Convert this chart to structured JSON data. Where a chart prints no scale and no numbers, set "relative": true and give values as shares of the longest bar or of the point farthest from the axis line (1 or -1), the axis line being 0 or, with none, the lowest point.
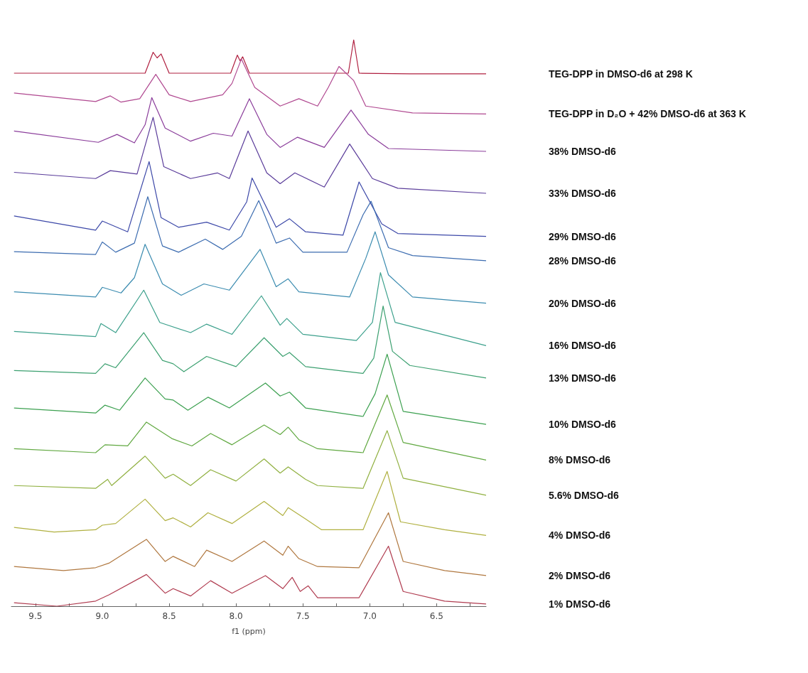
{
  "chart_data": {
    "type": "line",
    "relative": true,
    "xlabel": "f1 (ppm)",
    "xlim": [
      9.68,
      6.13
    ],
    "xticks": [
      9.5,
      {
        "value": 9.25,
        "label": null
      },
      {
        "value": 9,
        "label": "9.0"
      },
      {
        "value": 8.75,
        "label": null
      },
      8.5,
      {
        "value": 8.25,
        "label": null
      },
      {
        "value": 8,
        "label": "8.0"
      },
      {
        "value": 7.75,
        "label": null
      },
      7.5,
      {
        "value": 7.25,
        "label": null
      },
      {
        "value": 7,
        "label": "7.0"
      },
      {
        "value": 6.75,
        "label": null
      },
      6.5,
      {
        "value": 6.25,
        "label": null
      }
    ],
    "series": [
      {
        "name": "TEG-DPP in DMSO-d6 at 298 K",
        "color": "#b02040",
        "x": [
          9.66,
          9.2,
          8.8,
          8.68,
          8.62,
          8.59,
          8.56,
          8.5,
          8.2,
          8.04,
          7.99,
          7.97,
          7.95,
          7.9,
          7.5,
          7.16,
          7.12,
          7.08,
          6.7,
          6.13
        ],
        "values": [
          0.941,
          0.941,
          0.941,
          0.941,
          0.978,
          0.968,
          0.975,
          0.941,
          0.941,
          0.941,
          0.973,
          0.963,
          0.97,
          0.941,
          0.941,
          0.941,
          1,
          0.941,
          0.94,
          0.94
        ]
      },
      {
        "name": "TEG-DPP in D₂O + 42% DMSO-d6 at 363 K",
        "color": "#b04890",
        "x": [
          9.66,
          9.05,
          8.94,
          8.86,
          8.72,
          8.6,
          8.5,
          8.34,
          8.1,
          8.03,
          7.96,
          7.86,
          7.67,
          7.53,
          7.39,
          7.31,
          7.23,
          7.12,
          7.03,
          6.68,
          6.13
        ],
        "values": [
          0.906,
          0.891,
          0.901,
          0.89,
          0.896,
          0.939,
          0.903,
          0.891,
          0.903,
          0.923,
          0.966,
          0.916,
          0.883,
          0.896,
          0.883,
          0.916,
          0.953,
          0.928,
          0.883,
          0.871,
          0.869
        ]
      },
      {
        "name": "38% DMSO-d6",
        "color": "#8a3c9a",
        "x": [
          9.66,
          9.03,
          8.89,
          8.76,
          8.68,
          8.63,
          8.53,
          8.34,
          8.17,
          8.03,
          7.9,
          7.77,
          7.67,
          7.54,
          7.34,
          7.14,
          7.01,
          6.86,
          6.13
        ],
        "values": [
          0.839,
          0.819,
          0.833,
          0.818,
          0.85,
          0.898,
          0.844,
          0.821,
          0.835,
          0.83,
          0.896,
          0.833,
          0.81,
          0.828,
          0.81,
          0.876,
          0.833,
          0.808,
          0.803
        ]
      },
      {
        "name": "33% DMSO-d6",
        "color": "#5a3c9a",
        "x": [
          9.66,
          9.05,
          8.94,
          8.74,
          8.62,
          8.54,
          8.34,
          8.14,
          8.05,
          7.91,
          7.77,
          7.67,
          7.56,
          7.34,
          7.15,
          6.98,
          6.79,
          6.13
        ],
        "values": [
          0.766,
          0.755,
          0.769,
          0.763,
          0.863,
          0.776,
          0.755,
          0.765,
          0.755,
          0.839,
          0.765,
          0.746,
          0.765,
          0.74,
          0.816,
          0.755,
          0.738,
          0.729
        ]
      },
      {
        "name": "29% DMSO-d6",
        "color": "#3c48a8",
        "x": [
          9.66,
          9.05,
          9.0,
          8.81,
          8.65,
          8.56,
          8.43,
          8.22,
          8.05,
          7.92,
          7.88,
          7.7,
          7.6,
          7.48,
          7.2,
          7.08,
          6.91,
          6.79,
          6.13
        ],
        "values": [
          0.689,
          0.664,
          0.68,
          0.661,
          0.785,
          0.686,
          0.669,
          0.678,
          0.664,
          0.714,
          0.756,
          0.669,
          0.684,
          0.661,
          0.655,
          0.749,
          0.675,
          0.658,
          0.653
        ]
      },
      {
        "name": "28% DMSO-d6",
        "color": "#3c6cb0",
        "x": [
          9.66,
          9.05,
          9.0,
          8.9,
          8.76,
          8.66,
          8.55,
          8.43,
          8.23,
          8.1,
          7.96,
          7.83,
          7.7,
          7.6,
          7.5,
          7.17,
          7.05,
          6.99,
          6.86,
          6.68,
          6.13
        ],
        "values": [
          0.626,
          0.621,
          0.643,
          0.625,
          0.641,
          0.723,
          0.636,
          0.625,
          0.648,
          0.63,
          0.653,
          0.716,
          0.641,
          0.65,
          0.625,
          0.625,
          0.691,
          0.715,
          0.633,
          0.619,
          0.61
        ]
      },
      {
        "name": "20% DMSO-d6",
        "color": "#3c8cb0",
        "x": [
          9.66,
          9.05,
          9.0,
          8.86,
          8.76,
          8.68,
          8.55,
          8.41,
          8.24,
          8.05,
          7.82,
          7.7,
          7.61,
          7.53,
          7.15,
          7.03,
          6.96,
          6.86,
          6.68,
          6.13
        ],
        "values": [
          0.555,
          0.546,
          0.563,
          0.553,
          0.58,
          0.639,
          0.569,
          0.549,
          0.569,
          0.558,
          0.63,
          0.564,
          0.578,
          0.555,
          0.546,
          0.614,
          0.661,
          0.585,
          0.546,
          0.535
        ]
      },
      {
        "name": "16% DMSO-d6",
        "color": "#3ca08c",
        "x": [
          9.66,
          9.05,
          9.01,
          8.9,
          8.69,
          8.57,
          8.34,
          8.22,
          8.03,
          7.81,
          7.67,
          7.62,
          7.5,
          7.1,
          6.98,
          6.92,
          6.81,
          6.13
        ],
        "values": [
          0.485,
          0.476,
          0.499,
          0.483,
          0.558,
          0.501,
          0.483,
          0.498,
          0.48,
          0.548,
          0.496,
          0.508,
          0.48,
          0.469,
          0.501,
          0.589,
          0.501,
          0.46
        ]
      },
      {
        "name": "13% DMSO-d6",
        "color": "#3ca070",
        "x": [
          9.66,
          9.05,
          8.98,
          8.9,
          8.69,
          8.55,
          8.47,
          8.39,
          8.22,
          8.0,
          7.79,
          7.65,
          7.6,
          7.48,
          7.05,
          6.97,
          6.9,
          6.83,
          6.7,
          6.13
        ],
        "values": [
          0.416,
          0.411,
          0.428,
          0.421,
          0.483,
          0.434,
          0.428,
          0.414,
          0.441,
          0.423,
          0.474,
          0.441,
          0.448,
          0.423,
          0.411,
          0.438,
          0.53,
          0.45,
          0.425,
          0.403
        ]
      },
      {
        "name": "10% DMSO-d6",
        "color": "#3ca050",
        "x": [
          9.66,
          9.05,
          8.98,
          8.87,
          8.68,
          8.53,
          8.47,
          8.36,
          8.21,
          8.05,
          7.78,
          7.67,
          7.6,
          7.48,
          7.05,
          6.96,
          6.87,
          6.75,
          6.13
        ],
        "values": [
          0.35,
          0.341,
          0.355,
          0.346,
          0.403,
          0.366,
          0.364,
          0.346,
          0.369,
          0.35,
          0.394,
          0.371,
          0.378,
          0.35,
          0.335,
          0.375,
          0.445,
          0.344,
          0.321
        ]
      },
      {
        "name": "8% DMSO-d6",
        "color": "#60a840",
        "x": [
          9.66,
          9.05,
          8.98,
          8.81,
          8.67,
          8.48,
          8.33,
          8.19,
          8.03,
          7.79,
          7.67,
          7.61,
          7.53,
          7.39,
          7.05,
          6.87,
          6.75,
          6.13
        ],
        "values": [
          0.278,
          0.271,
          0.285,
          0.283,
          0.325,
          0.296,
          0.283,
          0.305,
          0.285,
          0.32,
          0.303,
          0.316,
          0.294,
          0.278,
          0.271,
          0.373,
          0.289,
          0.258
        ]
      },
      {
        "name": "5.6% DMSO-d6",
        "color": "#90b040",
        "x": [
          9.66,
          9.05,
          8.96,
          8.93,
          8.68,
          8.53,
          8.47,
          8.34,
          8.19,
          8.0,
          7.79,
          7.67,
          7.61,
          7.48,
          7.39,
          7.05,
          6.87,
          6.75,
          6.13
        ],
        "values": [
          0.213,
          0.208,
          0.224,
          0.213,
          0.265,
          0.226,
          0.233,
          0.213,
          0.241,
          0.221,
          0.26,
          0.235,
          0.246,
          0.224,
          0.213,
          0.208,
          0.31,
          0.226,
          0.196
        ]
      },
      {
        "name": "4% DMSO-d6",
        "color": "#b0b040",
        "x": [
          9.66,
          9.36,
          9.05,
          9.0,
          8.9,
          8.68,
          8.53,
          8.47,
          8.34,
          8.21,
          8.03,
          7.79,
          7.65,
          7.61,
          7.48,
          7.36,
          7.05,
          6.87,
          6.77,
          6.44,
          6.13
        ],
        "values": [
          0.139,
          0.131,
          0.135,
          0.143,
          0.146,
          0.189,
          0.151,
          0.156,
          0.14,
          0.165,
          0.146,
          0.185,
          0.16,
          0.174,
          0.154,
          0.135,
          0.135,
          0.238,
          0.149,
          0.135,
          0.125
        ]
      },
      {
        "name": "2% DMSO-d6",
        "color": "#b07840",
        "x": [
          9.66,
          9.29,
          9.05,
          8.95,
          8.67,
          8.53,
          8.47,
          8.31,
          8.22,
          8.03,
          7.79,
          7.65,
          7.61,
          7.53,
          7.39,
          7.08,
          6.86,
          6.75,
          6.44,
          6.13
        ],
        "values": [
          0.07,
          0.063,
          0.068,
          0.076,
          0.118,
          0.079,
          0.088,
          0.07,
          0.099,
          0.079,
          0.115,
          0.09,
          0.106,
          0.084,
          0.07,
          0.068,
          0.165,
          0.079,
          0.063,
          0.054
        ]
      },
      {
        "name": "1% DMSO-d6",
        "color": "#b03c50",
        "x": [
          9.66,
          9.34,
          9.05,
          8.95,
          8.67,
          8.53,
          8.47,
          8.34,
          8.19,
          8.03,
          7.78,
          7.65,
          7.58,
          7.52,
          7.46,
          7.39,
          7.08,
          6.86,
          6.75,
          6.44,
          6.13
        ],
        "values": [
          0.006,
          0,
          0.009,
          0.02,
          0.056,
          0.023,
          0.031,
          0.018,
          0.045,
          0.023,
          0.054,
          0.031,
          0.051,
          0.026,
          0.036,
          0.015,
          0.015,
          0.106,
          0.026,
          0.009,
          0.004
        ]
      }
    ]
  }
}
